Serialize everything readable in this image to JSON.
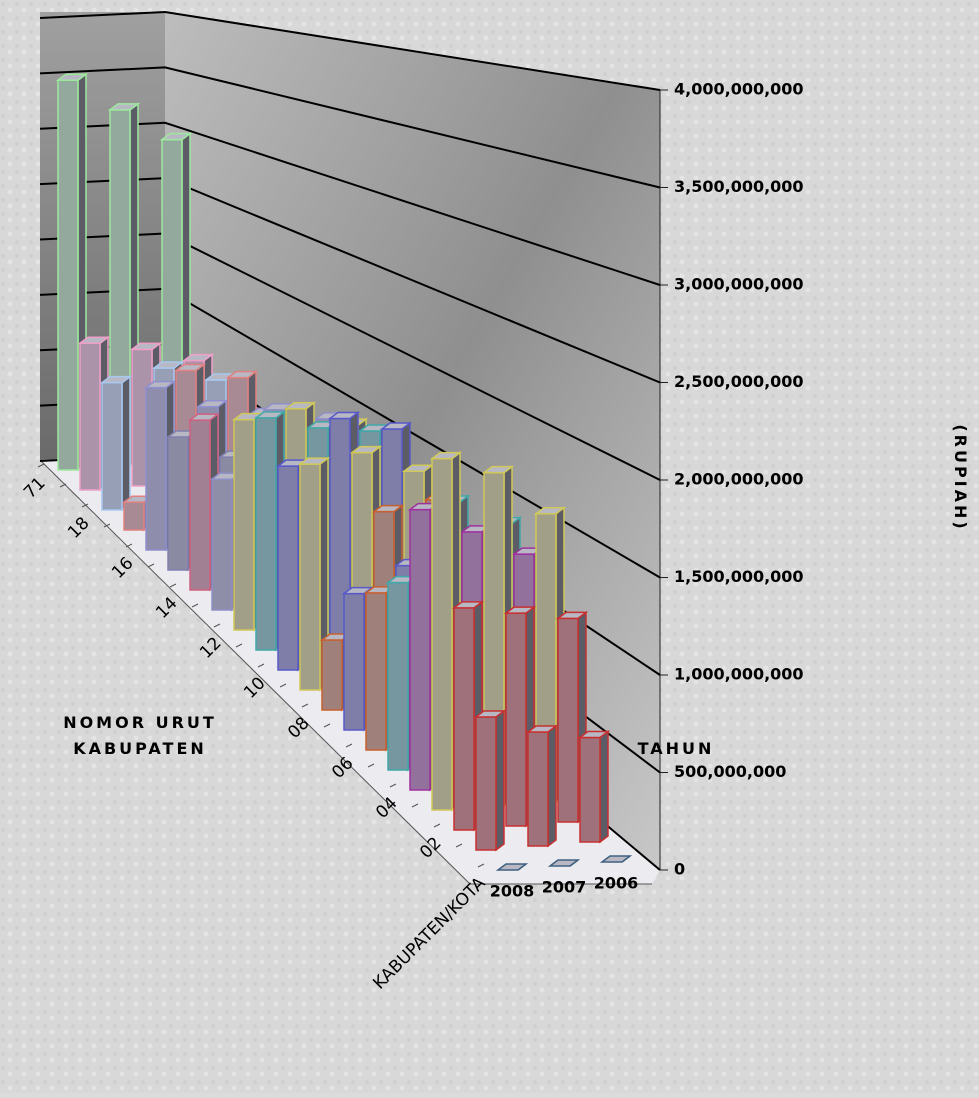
{
  "chart_data": {
    "type": "bar3d",
    "x_axis_title": [
      "NOMOR URUT",
      "KABUPATEN"
    ],
    "depth_axis_title": "TAHUN",
    "y_axis_title": "(RUPIAH)",
    "categories": [
      "71",
      null,
      "18",
      null,
      "16",
      null,
      "14",
      null,
      "12",
      null,
      "10",
      null,
      "08",
      null,
      "06",
      null,
      "04",
      null,
      "02",
      null,
      "KABUPATEN/KOTA"
    ],
    "point_colors": [
      "#9ee89e",
      "#f0a0c8",
      "#a8c8f0",
      "#e08080",
      "#9090d0",
      "#8080b0",
      "#d06080",
      "#9090c8",
      "#d0c858",
      "#40a8a8",
      "#5858c8",
      "#d0c858",
      "#c86030",
      "#5858c8",
      "#c86030",
      "#40a8a8",
      "#a030a0",
      "#d0c858",
      "#c83030",
      "#c83030",
      "#406080"
    ],
    "series": [
      {
        "name": "2008",
        "values": [
          4050000000,
          1450000000,
          1200000000,
          250000000,
          1400000000,
          1100000000,
          1350000000,
          1000000000,
          1550000000,
          1650000000,
          1400000000,
          1500000000,
          450000000,
          850000000,
          950000000,
          1100000000,
          1600000000,
          1950000000,
          1200000000,
          700000000,
          0
        ]
      },
      {
        "name": "2007",
        "values": [
          3700000000,
          1350000000,
          1300000000,
          1400000000,
          1200000000,
          900000000,
          1250000000,
          1500000000,
          1600000000,
          1550000000,
          1700000000,
          1550000000,
          1250000000,
          1000000000,
          1300000000,
          1550000000,
          1450000000,
          1850000000,
          1150000000,
          600000000,
          0
        ]
      },
      {
        "name": "2006",
        "values": [
          3350000000,
          1200000000,
          1150000000,
          1300000000,
          1100000000,
          1000000000,
          1200000000,
          1400000000,
          1450000000,
          1500000000,
          1600000000,
          1400000000,
          1300000000,
          1100000000,
          1200000000,
          1400000000,
          1300000000,
          1600000000,
          1100000000,
          550000000,
          0
        ]
      }
    ],
    "ylim": [
      0,
      4000000000
    ],
    "yticks": [
      0,
      {
        "value": 500000000,
        "label": "500,000,000"
      },
      {
        "value": 1000000000,
        "label": "1,000,000,000"
      },
      {
        "value": 1500000000,
        "label": "1,500,000,000"
      },
      {
        "value": 2000000000,
        "label": "2,000,000,000"
      },
      {
        "value": 2500000000,
        "label": "2,500,000,000"
      },
      {
        "value": 3000000000,
        "label": "3,000,000,000"
      },
      {
        "value": 3500000000,
        "label": "3,500,000,000"
      },
      {
        "value": 4000000000,
        "label": "4,000,000,000"
      }
    ],
    "grid": true
  }
}
